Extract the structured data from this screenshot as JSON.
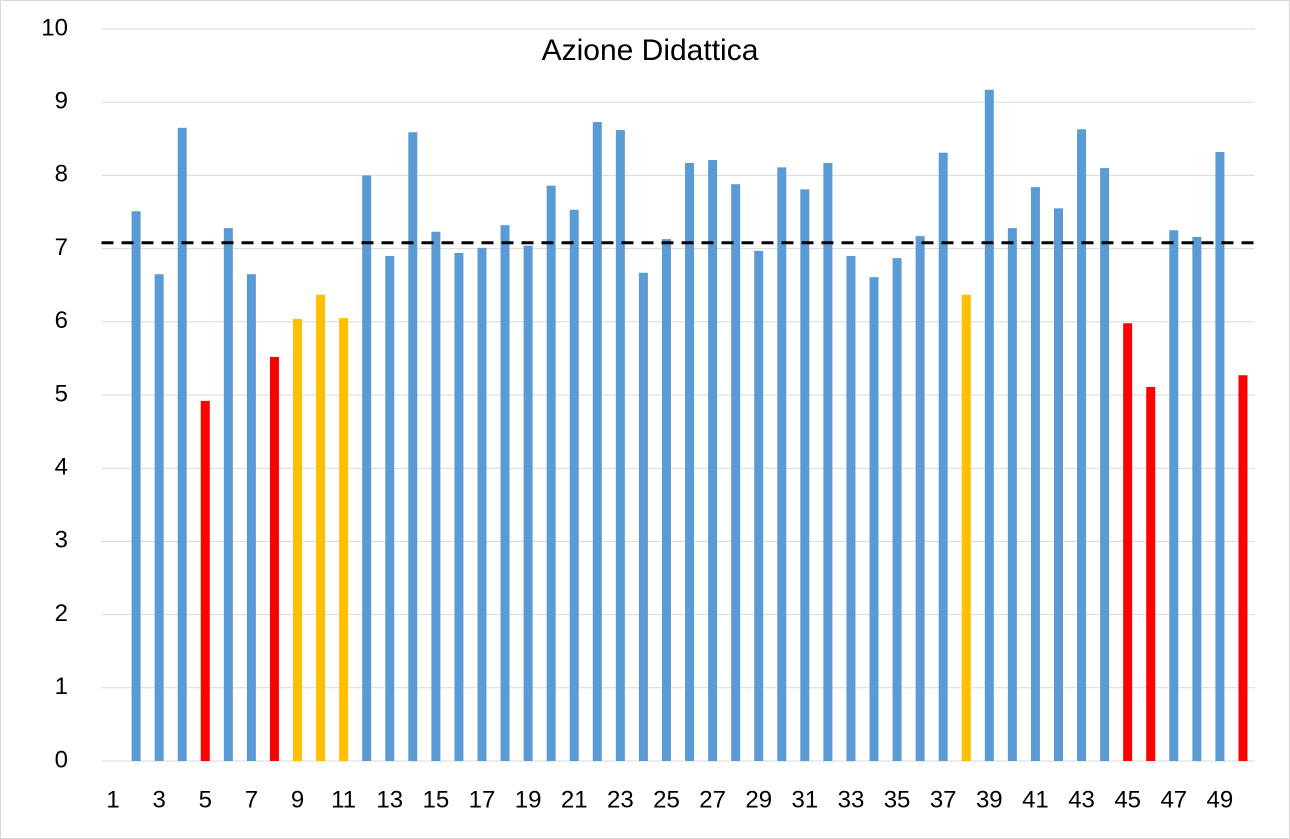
{
  "chart_data": {
    "type": "bar",
    "title": "Azione Didattica",
    "categories": [
      "1",
      null,
      "3",
      null,
      "5",
      null,
      "7",
      null,
      "9",
      null,
      "11",
      null,
      "13",
      null,
      "15",
      null,
      "17",
      null,
      "19",
      null,
      "21",
      null,
      "23",
      null,
      "25",
      null,
      "27",
      null,
      "29",
      null,
      "31",
      null,
      "33",
      null,
      "35",
      null,
      "37",
      null,
      "39",
      null,
      "41",
      null,
      "43",
      null,
      "45",
      null,
      "47",
      null,
      "49",
      null
    ],
    "values": [
      null,
      7.51,
      6.65,
      8.65,
      4.92,
      7.28,
      6.65,
      5.52,
      6.04,
      6.37,
      6.05,
      8.0,
      6.9,
      8.59,
      7.23,
      6.94,
      7.01,
      7.32,
      7.04,
      7.86,
      7.53,
      8.73,
      8.62,
      6.67,
      7.13,
      8.17,
      8.21,
      7.88,
      6.97,
      8.11,
      7.81,
      8.17,
      6.9,
      6.61,
      6.87,
      7.17,
      8.31,
      6.37,
      9.17,
      7.28,
      7.84,
      7.55,
      8.63,
      8.1,
      5.98,
      5.11,
      7.25,
      7.16,
      8.32,
      5.27
    ],
    "colors": [
      null,
      "#5b9bd5",
      "#5b9bd5",
      "#5b9bd5",
      "#ff0000",
      "#5b9bd5",
      "#5b9bd5",
      "#ff0000",
      "#ffc000",
      "#ffc000",
      "#ffc000",
      "#5b9bd5",
      "#5b9bd5",
      "#5b9bd5",
      "#5b9bd5",
      "#5b9bd5",
      "#5b9bd5",
      "#5b9bd5",
      "#5b9bd5",
      "#5b9bd5",
      "#5b9bd5",
      "#5b9bd5",
      "#5b9bd5",
      "#5b9bd5",
      "#5b9bd5",
      "#5b9bd5",
      "#5b9bd5",
      "#5b9bd5",
      "#5b9bd5",
      "#5b9bd5",
      "#5b9bd5",
      "#5b9bd5",
      "#5b9bd5",
      "#5b9bd5",
      "#5b9bd5",
      "#5b9bd5",
      "#5b9bd5",
      "#ffc000",
      "#5b9bd5",
      "#5b9bd5",
      "#5b9bd5",
      "#5b9bd5",
      "#5b9bd5",
      "#5b9bd5",
      "#ff0000",
      "#ff0000",
      "#5b9bd5",
      "#5b9bd5",
      "#5b9bd5",
      "#ff0000"
    ],
    "reference_line": {
      "value": 7.08,
      "color": "#000000",
      "dashed": true
    },
    "ylim": [
      0,
      10
    ],
    "yticks": [
      0,
      1,
      2,
      3,
      4,
      5,
      6,
      7,
      8,
      9,
      10
    ],
    "grid": true
  }
}
